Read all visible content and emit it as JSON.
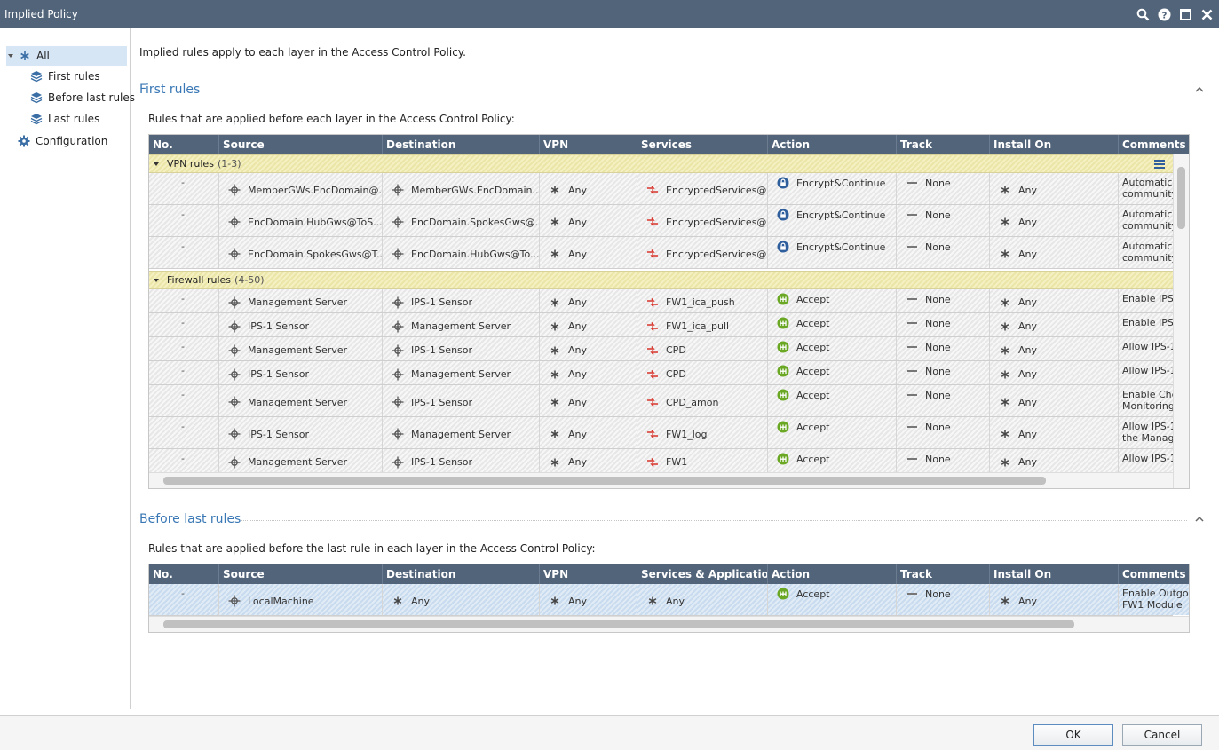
{
  "window": {
    "title": "Implied Policy"
  },
  "sidebar": {
    "items": [
      {
        "label": "All",
        "icon": "asterisk-icon"
      },
      {
        "label": "First rules",
        "icon": "layers-icon"
      },
      {
        "label": "Before last rules",
        "icon": "layers-icon"
      },
      {
        "label": "Last rules",
        "icon": "layers-icon"
      },
      {
        "label": "Configuration",
        "icon": "gear-icon"
      }
    ]
  },
  "intro": "Implied rules apply to each layer in the Access Control Policy.",
  "first_rules": {
    "title": "First rules",
    "description": "Rules that are applied before each layer in the Access Control Policy:",
    "columns": [
      "No.",
      "Source",
      "Destination",
      "VPN",
      "Services",
      "Action",
      "Track",
      "Install On",
      "Comments"
    ],
    "groups": [
      {
        "label": "VPN rules",
        "count": "(1-3)",
        "rows": [
          {
            "no": "-",
            "source": "MemberGWs.EncDomain@...",
            "destination": "MemberGWs.EncDomain...",
            "vpn": "Any",
            "service": "EncryptedServices@...",
            "action": "Encrypt&Continue",
            "track": "None",
            "install": "Any",
            "comment": [
              "Automatic l",
              "community"
            ]
          },
          {
            "no": "-",
            "source": "EncDomain.HubGws@ToS...",
            "destination": "EncDomain.SpokesGws@...",
            "vpn": "Any",
            "service": "EncryptedServices@...",
            "action": "Encrypt&Continue",
            "track": "None",
            "install": "Any",
            "comment": [
              "Automatic l",
              "community"
            ]
          },
          {
            "no": "-",
            "source": "EncDomain.SpokesGws@T...",
            "destination": "EncDomain.HubGws@To...",
            "vpn": "Any",
            "service": "EncryptedServices@...",
            "action": "Encrypt&Continue",
            "track": "None",
            "install": "Any",
            "comment": [
              "Automatic l",
              "community"
            ]
          }
        ]
      },
      {
        "label": "Firewall rules",
        "count": "(4-50)",
        "rows": [
          {
            "no": "-",
            "source": "Management Server",
            "destination": "IPS-1 Sensor",
            "vpn": "Any",
            "service": "FW1_ica_push",
            "action": "Accept",
            "track": "None",
            "install": "Any",
            "comment": [
              "Enable IPS-"
            ]
          },
          {
            "no": "-",
            "source": "IPS-1 Sensor",
            "destination": "Management Server",
            "vpn": "Any",
            "service": "FW1_ica_pull",
            "action": "Accept",
            "track": "None",
            "install": "Any",
            "comment": [
              "Enable IPS-"
            ]
          },
          {
            "no": "-",
            "source": "Management Server",
            "destination": "IPS-1 Sensor",
            "vpn": "Any",
            "service": "CPD",
            "action": "Accept",
            "track": "None",
            "install": "Any",
            "comment": [
              "Allow IPS-1"
            ]
          },
          {
            "no": "-",
            "source": "IPS-1 Sensor",
            "destination": "Management Server",
            "vpn": "Any",
            "service": "CPD",
            "action": "Accept",
            "track": "None",
            "install": "Any",
            "comment": [
              "Allow IPS-1"
            ]
          },
          {
            "no": "-",
            "source": "Management Server",
            "destination": "IPS-1 Sensor",
            "vpn": "Any",
            "service": "CPD_amon",
            "action": "Accept",
            "track": "None",
            "install": "Any",
            "comment": [
              "Enable Che",
              "Monitoring"
            ]
          },
          {
            "no": "-",
            "source": "IPS-1 Sensor",
            "destination": "Management Server",
            "vpn": "Any",
            "service": "FW1_log",
            "action": "Accept",
            "track": "None",
            "install": "Any",
            "comment": [
              "Allow IPS-1",
              "the Manag"
            ]
          },
          {
            "no": "-",
            "source": "Management Server",
            "destination": "IPS-1 Sensor",
            "vpn": "Any",
            "service": "FW1",
            "action": "Accept",
            "track": "None",
            "install": "Any",
            "comment": [
              "Allow IPS-1"
            ]
          }
        ]
      }
    ]
  },
  "before_last_rules": {
    "title": "Before last rules",
    "description": "Rules that are applied before the last rule in each layer in the Access Control Policy:",
    "columns": [
      "No.",
      "Source",
      "Destination",
      "VPN",
      "Services & Applications",
      "Action",
      "Track",
      "Install On",
      "Comments"
    ],
    "rows": [
      {
        "no": "-",
        "source": "LocalMachine",
        "destination": "Any",
        "vpn": "Any",
        "service": "Any",
        "action": "Accept",
        "track": "None",
        "install": "Any",
        "comment": [
          "Enable Outgoi",
          "FW1 Module"
        ]
      }
    ]
  },
  "buttons": {
    "ok": "OK",
    "cancel": "Cancel"
  },
  "colors": {
    "titlebar": "#52647a",
    "section_title": "#3a78b5",
    "accept": "#6aa823",
    "encrypt": "#2f5e9c",
    "service_red": "#d9342b",
    "group_row": "#f1edbb"
  }
}
